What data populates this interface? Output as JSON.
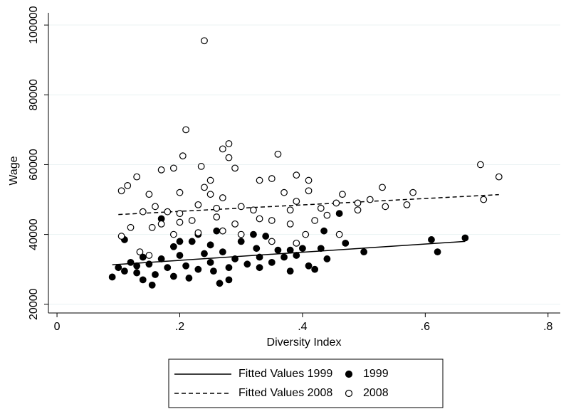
{
  "chart_data": {
    "type": "scatter",
    "x_label": "Diversity Index",
    "y_label": "Wage",
    "xlim": [
      -0.014,
      0.82
    ],
    "ylim": [
      17500,
      103500
    ],
    "xticks": [
      0,
      {
        "value": 0.2,
        "label": ".2"
      },
      {
        "value": 0.4,
        "label": ".4"
      },
      {
        "value": 0.6,
        "label": ".6"
      },
      {
        "value": 0.8,
        "label": ".8"
      }
    ],
    "yticks": [
      20000,
      40000,
      60000,
      80000,
      100000
    ],
    "grid": true,
    "legend": "bottom",
    "series": [
      {
        "name": "Fitted Values 1999",
        "style": "solid",
        "color": "#000000",
        "x": [
          0.09,
          0.665
        ],
        "values": [
          31300,
          38000
        ]
      },
      {
        "name": "Fitted Values 2008",
        "style": "dashed",
        "color": "#000000",
        "x": [
          0.1,
          0.72
        ],
        "values": [
          45700,
          51400
        ]
      },
      {
        "name": "1999",
        "style": "filled",
        "color": "#000000",
        "x": [
          0.09,
          0.1,
          0.11,
          0.12,
          0.13,
          0.14,
          0.15,
          0.155,
          0.16,
          0.17,
          0.18,
          0.19,
          0.2,
          0.21,
          0.215,
          0.22,
          0.23,
          0.24,
          0.25,
          0.255,
          0.26,
          0.265,
          0.27,
          0.28,
          0.29,
          0.3,
          0.31,
          0.32,
          0.325,
          0.33,
          0.34,
          0.35,
          0.36,
          0.37,
          0.38,
          0.39,
          0.4,
          0.41,
          0.42,
          0.43,
          0.44,
          0.435,
          0.47,
          0.5,
          0.46,
          0.61,
          0.62,
          0.665,
          0.17,
          0.11,
          0.2,
          0.14,
          0.23,
          0.28,
          0.33,
          0.38,
          0.13,
          0.19,
          0.25
        ],
        "values": [
          27800,
          30500,
          29500,
          32000,
          29000,
          27000,
          31500,
          25500,
          28500,
          33000,
          30500,
          36500,
          34000,
          31000,
          27500,
          38000,
          30000,
          34500,
          32000,
          29500,
          41000,
          26000,
          35000,
          27000,
          33000,
          38000,
          31500,
          40000,
          36000,
          30500,
          39500,
          32000,
          35500,
          33500,
          29500,
          34000,
          36000,
          31000,
          30000,
          36000,
          33000,
          41000,
          37500,
          35000,
          46000,
          38500,
          35000,
          39000,
          44500,
          38500,
          38000,
          33500,
          40000,
          30500,
          33500,
          35500,
          31000,
          28000,
          37000
        ]
      },
      {
        "name": "2008",
        "style": "hollow",
        "color": "#000000",
        "x": [
          0.24,
          0.21,
          0.205,
          0.28,
          0.27,
          0.28,
          0.36,
          0.235,
          0.29,
          0.17,
          0.19,
          0.13,
          0.115,
          0.105,
          0.15,
          0.25,
          0.24,
          0.33,
          0.35,
          0.39,
          0.37,
          0.41,
          0.41,
          0.69,
          0.72,
          0.53,
          0.58,
          0.57,
          0.51,
          0.49,
          0.465,
          0.455,
          0.44,
          0.39,
          0.38,
          0.32,
          0.3,
          0.27,
          0.26,
          0.23,
          0.2,
          0.18,
          0.16,
          0.14,
          0.17,
          0.155,
          0.2,
          0.22,
          0.26,
          0.29,
          0.33,
          0.35,
          0.38,
          0.42,
          0.105,
          0.135,
          0.15,
          0.19,
          0.23,
          0.27,
          0.3,
          0.35,
          0.39,
          0.405,
          0.46,
          0.49,
          0.695,
          0.535,
          0.43,
          0.25,
          0.2,
          0.12
        ],
        "values": [
          95500,
          70000,
          62500,
          66000,
          64500,
          62000,
          63000,
          59500,
          59000,
          58500,
          59000,
          56500,
          54000,
          52500,
          51500,
          55500,
          53500,
          55500,
          56000,
          57000,
          52000,
          55500,
          52500,
          60000,
          56500,
          53500,
          52000,
          48500,
          50000,
          49000,
          51500,
          49000,
          45500,
          49500,
          47000,
          47000,
          48000,
          50500,
          47500,
          48500,
          46000,
          46500,
          48000,
          46500,
          43000,
          42000,
          43500,
          44000,
          45000,
          43000,
          44500,
          44000,
          43000,
          44000,
          39500,
          35000,
          34000,
          40000,
          40500,
          41000,
          40000,
          38000,
          37500,
          40000,
          40000,
          47000,
          50000,
          48000,
          47500,
          51500,
          52000,
          42000
        ]
      }
    ]
  }
}
